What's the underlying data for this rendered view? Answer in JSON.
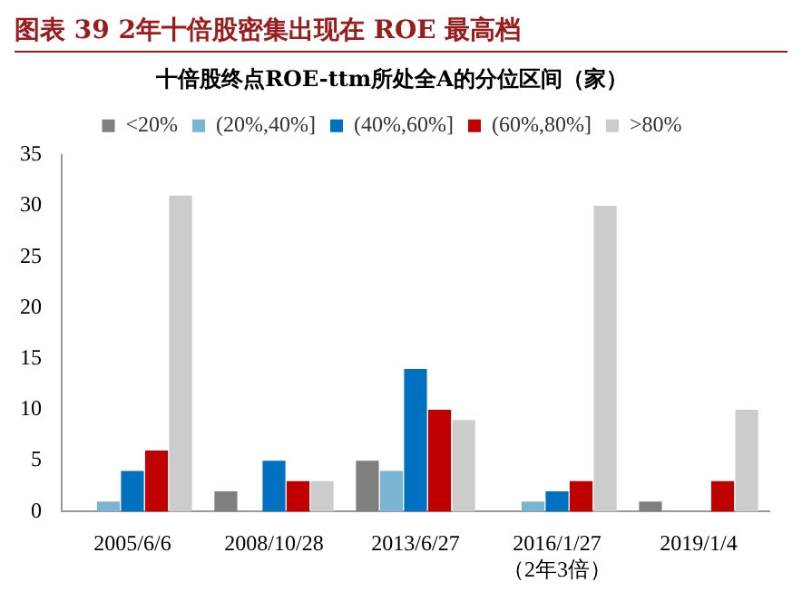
{
  "chart_data": {
    "type": "bar",
    "title": "图表 39  2年十倍股密集出现在 ROE 最高档",
    "subtitle": "十倍股终点ROE-ttm所处全A的分位区间（家）",
    "categories": [
      "2005/6/6",
      "2008/10/28",
      "2013/6/27",
      "2016/1/27\n（2年3倍）",
      "2019/1/4"
    ],
    "series": [
      {
        "name": "<20%",
        "color": "#7f7f7f",
        "values": [
          0,
          2,
          5,
          0,
          1
        ]
      },
      {
        "name": "(20%,40%]",
        "color": "#7ab4d0",
        "values": [
          1,
          0,
          4,
          1,
          0
        ]
      },
      {
        "name": "(40%,60%]",
        "color": "#0070c0",
        "values": [
          4,
          5,
          14,
          2,
          0
        ]
      },
      {
        "name": "(60%,80%]",
        "color": "#c00000",
        "values": [
          6,
          3,
          10,
          3,
          3
        ]
      },
      {
        "name": ">80%",
        "color": "#cccccc",
        "values": [
          31,
          3,
          9,
          30,
          10
        ]
      }
    ],
    "ylim": [
      0,
      35
    ],
    "yticks": [
      0,
      5,
      10,
      15,
      20,
      25,
      30,
      35
    ],
    "grid": false,
    "legend": "top"
  }
}
